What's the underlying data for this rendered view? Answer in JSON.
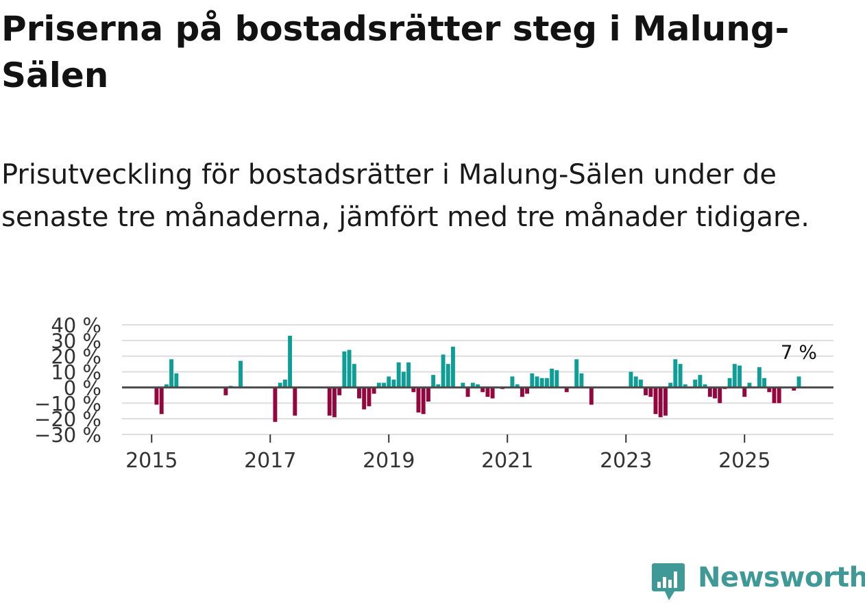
{
  "title": "Priserna på bostadsrätter steg i Malung-Sälen",
  "subtitle": "Prisutveckling för bostadsrätter i Malung-Sälen under de senaste tre månaderna, jämfört med tre månader tidigare.",
  "brand": {
    "name": "Newsworthy",
    "color": "#3f9a97"
  },
  "colors": {
    "positive": "#0e9e96",
    "negative": "#93063e",
    "zero_line": "#4a4a4a",
    "grid": "#dddddd"
  },
  "chart_data": {
    "type": "bar",
    "title": "Priserna på bostadsrätter steg i Malung-Sälen",
    "xlabel": "",
    "ylabel": "",
    "ylim": [
      -30,
      40
    ],
    "yticks": [
      -30,
      -20,
      -10,
      0,
      10,
      20,
      30,
      40
    ],
    "ytick_labels": [
      "−30 %",
      "−20 %",
      "−10 %",
      "0 %",
      "10 %",
      "20 %",
      "30 %",
      "40 %"
    ],
    "xticks": [
      2015,
      2017,
      2019,
      2021,
      2023,
      2025
    ],
    "xtick_labels": [
      "2015",
      "2017",
      "2019",
      "2021",
      "2023",
      "2025"
    ],
    "x_start": 2014.5,
    "x_end": 2026.5,
    "annotation": {
      "text": "7 %",
      "x": 2025.83,
      "y": 7
    },
    "series": [
      {
        "name": "Prisutveckling",
        "x": [
          2015.0,
          2015.083,
          2015.167,
          2015.25,
          2015.333,
          2015.417,
          2015.5,
          2015.583,
          2015.667,
          2015.75,
          2015.833,
          2015.917,
          2016.0,
          2016.083,
          2016.167,
          2016.25,
          2016.333,
          2016.417,
          2016.5,
          2016.583,
          2016.667,
          2016.75,
          2016.833,
          2016.917,
          2017.0,
          2017.083,
          2017.167,
          2017.25,
          2017.333,
          2017.417,
          2017.5,
          2017.583,
          2017.667,
          2017.75,
          2017.833,
          2017.917,
          2018.0,
          2018.083,
          2018.167,
          2018.25,
          2018.333,
          2018.417,
          2018.5,
          2018.583,
          2018.667,
          2018.75,
          2018.833,
          2018.917,
          2019.0,
          2019.083,
          2019.167,
          2019.25,
          2019.333,
          2019.417,
          2019.5,
          2019.583,
          2019.667,
          2019.75,
          2019.833,
          2019.917,
          2020.0,
          2020.083,
          2020.167,
          2020.25,
          2020.333,
          2020.417,
          2020.5,
          2020.583,
          2020.667,
          2020.75,
          2020.833,
          2020.917,
          2021.0,
          2021.083,
          2021.167,
          2021.25,
          2021.333,
          2021.417,
          2021.5,
          2021.583,
          2021.667,
          2021.75,
          2021.833,
          2021.917,
          2022.0,
          2022.083,
          2022.167,
          2022.25,
          2022.333,
          2022.417,
          2022.5,
          2022.583,
          2022.667,
          2022.75,
          2022.833,
          2022.917,
          2023.0,
          2023.083,
          2023.167,
          2023.25,
          2023.333,
          2023.417,
          2023.5,
          2023.583,
          2023.667,
          2023.75,
          2023.833,
          2023.917,
          2024.0,
          2024.083,
          2024.167,
          2024.25,
          2024.333,
          2024.417,
          2024.5,
          2024.583,
          2024.667,
          2024.75,
          2024.833,
          2024.917,
          2025.0,
          2025.083,
          2025.167,
          2025.25,
          2025.333,
          2025.417,
          2025.5,
          2025.583,
          2025.667,
          2025.75,
          2025.833,
          2025.917
        ],
        "values": [
          0,
          -11,
          -17,
          2,
          18,
          9,
          0,
          0,
          0,
          0,
          0,
          0,
          0,
          0,
          0,
          -5,
          1,
          0,
          17,
          0,
          0,
          0,
          0,
          0,
          0,
          -22,
          3,
          5,
          33,
          -18,
          0,
          0,
          0,
          0,
          0,
          0,
          -18,
          -19,
          -5,
          23,
          24,
          15,
          -7,
          -14,
          -12,
          -4,
          3,
          3,
          7,
          5,
          16,
          10,
          16,
          -3,
          -16,
          -17,
          -9,
          8,
          2,
          21,
          15,
          26,
          0,
          3,
          -6,
          3,
          2,
          -3,
          -6,
          -7,
          0,
          -1,
          0,
          7,
          2,
          -6,
          -4,
          9,
          7,
          6,
          6,
          12,
          11,
          0,
          -3,
          0,
          18,
          9,
          0,
          -11,
          0,
          0,
          0,
          0,
          0,
          0,
          0,
          10,
          7,
          5,
          -5,
          -6,
          -17,
          -19,
          -18,
          3,
          18,
          15,
          2,
          0,
          5,
          8,
          2,
          -6,
          -7,
          -10,
          -1,
          6,
          15,
          14,
          -6,
          3,
          0,
          13,
          6,
          -3,
          -10,
          -10,
          0,
          0,
          -2,
          7
        ]
      }
    ]
  }
}
